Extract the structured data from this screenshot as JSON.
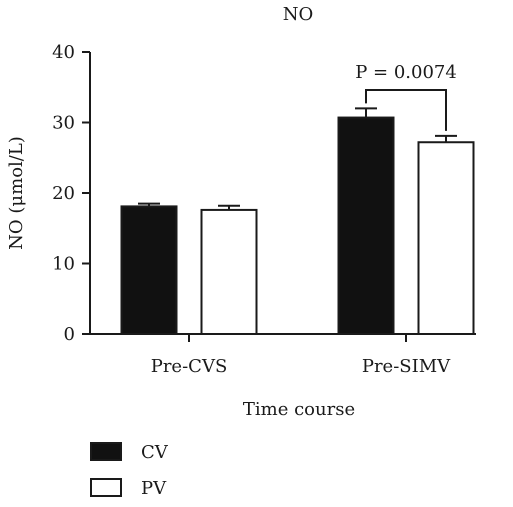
{
  "chart_data": {
    "type": "bar",
    "title": "NO",
    "xlabel": "Time course",
    "ylabel": "NO (μmol/L)",
    "ylim": [
      0,
      40
    ],
    "yticks": [
      0,
      10,
      20,
      30,
      40
    ],
    "grid": false,
    "legend_position": "bottom-left",
    "categories": [
      "Pre-CVS",
      "Pre-SIMV"
    ],
    "series": [
      {
        "name": "CV",
        "color": "#111111",
        "values": [
          18.1,
          30.7
        ],
        "errors": [
          0.4,
          1.3
        ]
      },
      {
        "name": "PV",
        "color": "#ffffff",
        "values": [
          17.6,
          27.2
        ],
        "errors": [
          0.6,
          0.9
        ]
      }
    ],
    "annotations": [
      {
        "text": "P = 0.0074",
        "category": "Pre-SIMV"
      }
    ]
  }
}
